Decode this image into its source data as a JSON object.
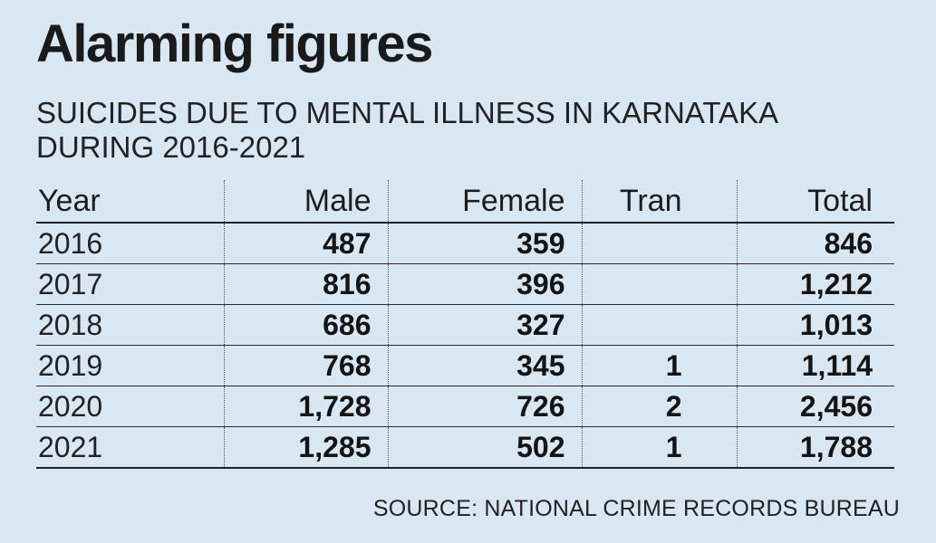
{
  "title": "Alarming figures",
  "subtitle": "SUICIDES DUE TO MENTAL ILLNESS IN KARNATAKA DURING 2016-2021",
  "source": "SOURCE: NATIONAL CRIME RECORDS BUREAU",
  "table": {
    "columns": [
      "Year",
      "Male",
      "Female",
      "Tran",
      "Total"
    ],
    "rows": [
      [
        "2016",
        "487",
        "359",
        "",
        "846"
      ],
      [
        "2017",
        "816",
        "396",
        "",
        "1,212"
      ],
      [
        "2018",
        "686",
        "327",
        "",
        "1,013"
      ],
      [
        "2019",
        "768",
        "345",
        "1",
        "1,114"
      ],
      [
        "2020",
        "1,728",
        "726",
        "2",
        "2,456"
      ],
      [
        "2021",
        "1,285",
        "502",
        "1",
        "1,788"
      ]
    ]
  },
  "colors": {
    "background": "#d8e7f1",
    "text": "#1d1d1d"
  },
  "chart_data": {
    "type": "table",
    "title": "Alarming figures",
    "subtitle": "SUICIDES DUE TO MENTAL ILLNESS IN KARNATAKA DURING 2016-2021",
    "categories": [
      "2016",
      "2017",
      "2018",
      "2019",
      "2020",
      "2021"
    ],
    "series": [
      {
        "name": "Male",
        "values": [
          487,
          816,
          686,
          768,
          1728,
          1285
        ]
      },
      {
        "name": "Female",
        "values": [
          359,
          396,
          327,
          345,
          726,
          502
        ]
      },
      {
        "name": "Tran",
        "values": [
          null,
          null,
          null,
          1,
          2,
          1
        ]
      },
      {
        "name": "Total",
        "values": [
          846,
          1212,
          1013,
          1114,
          2456,
          1788
        ]
      }
    ]
  }
}
